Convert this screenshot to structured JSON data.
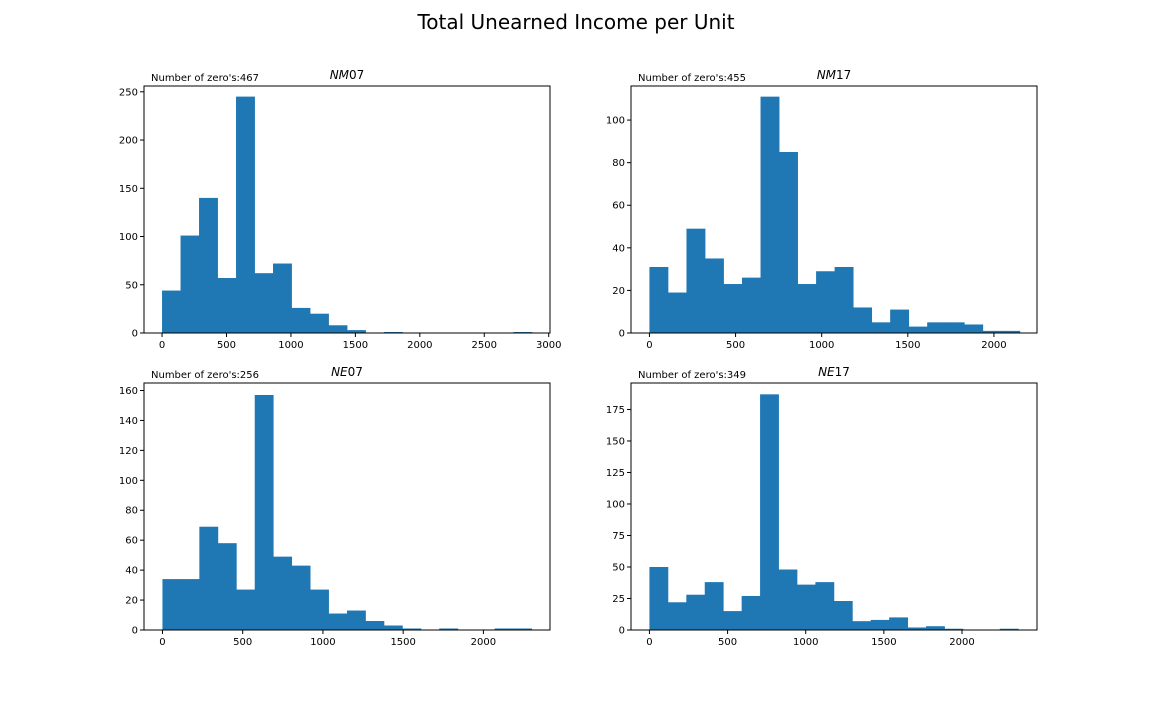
{
  "figure": {
    "title": "Total Unearned Income per Unit"
  },
  "style": {
    "bar_color": "#1f77b4",
    "axis_color": "#000000",
    "background": "#ffffff"
  },
  "chart_data": [
    {
      "type": "bar",
      "title_base": "NM",
      "title_suffix": "07",
      "zero_note": "Number of zero's:467",
      "xlim": [
        -140,
        3010
      ],
      "ylim": [
        0,
        256
      ],
      "xticks": [
        0,
        500,
        1000,
        1500,
        2000,
        2500,
        3000
      ],
      "yticks": [
        0,
        50,
        100,
        150,
        200,
        250
      ],
      "bin_edges": [
        0,
        143.5,
        287,
        430.5,
        574,
        717.5,
        861,
        1004.5,
        1148,
        1291.5,
        1435,
        1578.5,
        1722,
        1865.5,
        2009,
        2152.5,
        2296,
        2439.5,
        2583,
        2726.5,
        2870
      ],
      "counts": [
        44,
        101,
        140,
        57,
        245,
        62,
        72,
        26,
        20,
        8,
        3,
        0,
        1,
        0,
        0,
        0,
        0,
        0,
        0,
        1
      ]
    },
    {
      "type": "bar",
      "title_base": "NM",
      "title_suffix": "17",
      "zero_note": "Number of zero's:455",
      "xlim": [
        -107,
        2250
      ],
      "ylim": [
        0,
        116
      ],
      "xticks": [
        0,
        500,
        1000,
        1500,
        2000
      ],
      "yticks": [
        0,
        20,
        40,
        60,
        80,
        100
      ],
      "bin_edges": [
        0,
        107.5,
        215,
        322.5,
        430,
        537.5,
        645,
        752.5,
        860,
        967.5,
        1075,
        1182.5,
        1290,
        1397.5,
        1505,
        1612.5,
        1720,
        1827.5,
        1935,
        2042.5,
        2150
      ],
      "counts": [
        31,
        19,
        49,
        35,
        23,
        26,
        111,
        85,
        23,
        29,
        31,
        12,
        5,
        11,
        3,
        5,
        5,
        4,
        1,
        1
      ]
    },
    {
      "type": "bar",
      "title_base": "NE",
      "title_suffix": "07",
      "zero_note": "Number of zero's:256",
      "xlim": [
        -115,
        2415
      ],
      "ylim": [
        0,
        165
      ],
      "xticks": [
        0,
        500,
        1000,
        1500,
        2000
      ],
      "yticks": [
        0,
        20,
        40,
        60,
        80,
        100,
        120,
        140,
        160
      ],
      "bin_edges": [
        0,
        115,
        230,
        345,
        460,
        575,
        690,
        805,
        920,
        1035,
        1150,
        1265,
        1380,
        1495,
        1610,
        1725,
        1840,
        1955,
        2070,
        2185,
        2300
      ],
      "counts": [
        34,
        34,
        69,
        58,
        27,
        157,
        49,
        43,
        27,
        11,
        13,
        6,
        3,
        1,
        0,
        1,
        0,
        0,
        1,
        1
      ]
    },
    {
      "type": "bar",
      "title_base": "NE",
      "title_suffix": "17",
      "zero_note": "Number of zero's:349",
      "xlim": [
        -118,
        2480
      ],
      "ylim": [
        0,
        196
      ],
      "xticks": [
        0,
        500,
        1000,
        1500,
        2000
      ],
      "yticks": [
        0,
        25,
        50,
        75,
        100,
        125,
        150,
        175
      ],
      "bin_edges": [
        0,
        118,
        236,
        354,
        472,
        590,
        708,
        826,
        944,
        1062,
        1180,
        1298,
        1416,
        1534,
        1652,
        1770,
        1888,
        2006,
        2124,
        2242,
        2360
      ],
      "counts": [
        50,
        22,
        28,
        38,
        15,
        27,
        187,
        48,
        36,
        38,
        23,
        7,
        8,
        10,
        2,
        3,
        1,
        0,
        0,
        1
      ]
    }
  ]
}
